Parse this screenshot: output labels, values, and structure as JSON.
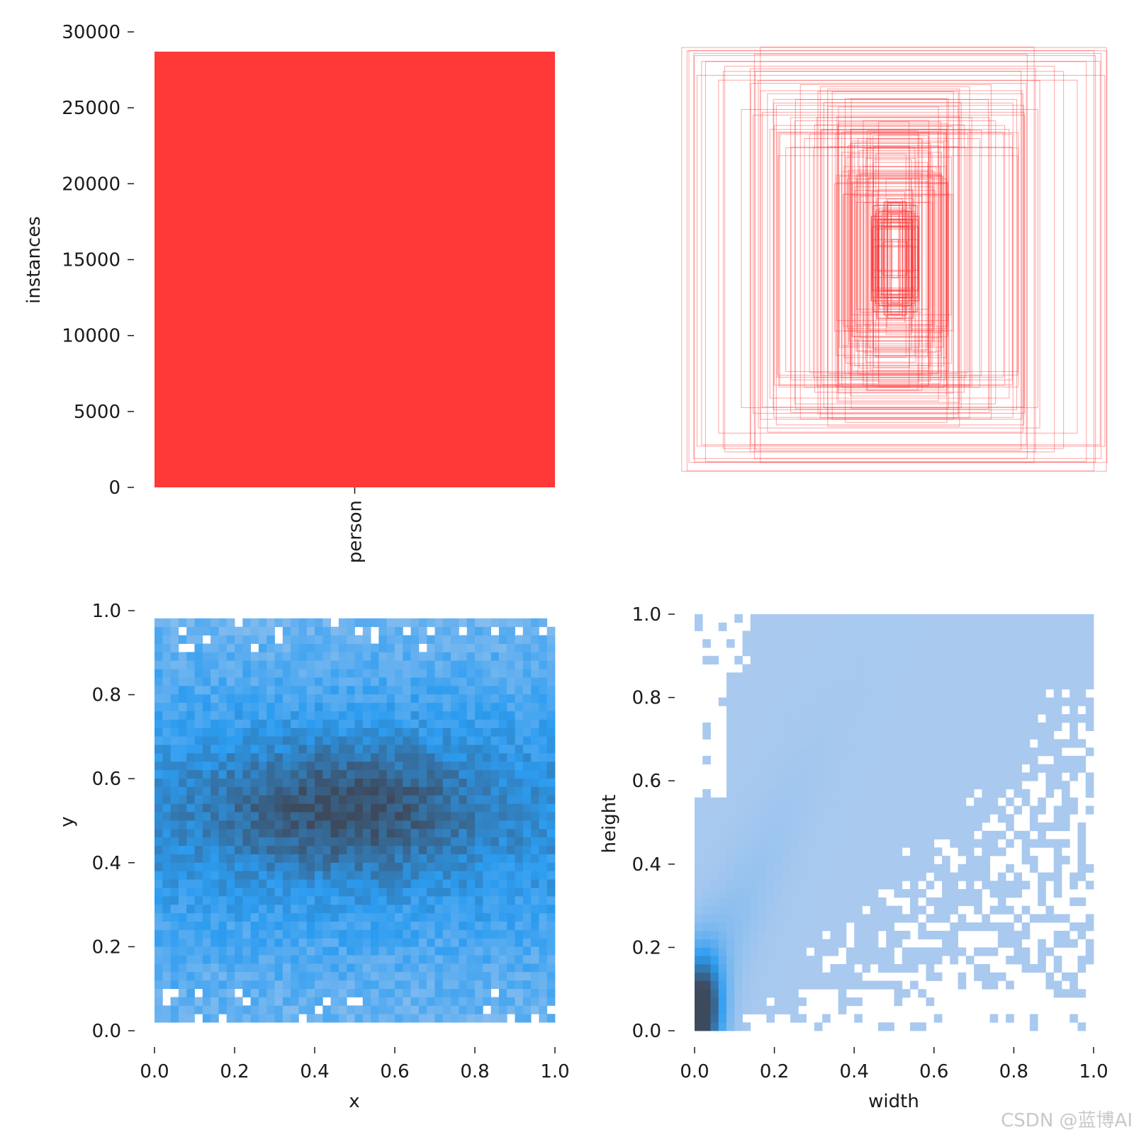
{
  "colors": {
    "bar": "#ff3838",
    "box_stroke": "#ff3838",
    "heat_light": "#aecbef",
    "heat_mid": "#2c9cf0",
    "heat_dark": "#3d4a5e",
    "axis": "#1a1a1a"
  },
  "watermark": "CSDN @蓝博AI",
  "chart_data": [
    {
      "type": "bar",
      "categories": [
        "person"
      ],
      "values": [
        28700
      ],
      "xlabel": "",
      "ylabel": "instances",
      "ylim": [
        0,
        30000
      ],
      "yticks": [
        "0",
        "5000",
        "10000",
        "15000",
        "20000",
        "25000",
        "30000"
      ],
      "ytick_values": [
        0,
        5000,
        10000,
        15000,
        20000,
        25000,
        30000
      ]
    },
    {
      "type": "boxes",
      "description_label": "",
      "xlim": [
        0,
        1000
      ],
      "ylim": [
        0,
        1000
      ],
      "box_count": 120
    },
    {
      "type": "heatmap",
      "xlabel": "x",
      "ylabel": "y",
      "xlim": [
        0,
        1
      ],
      "ylim": [
        0,
        1
      ],
      "bins": 50,
      "xticks": [
        "0.0",
        "0.2",
        "0.4",
        "0.6",
        "0.8",
        "1.0"
      ],
      "yticks": [
        "0.0",
        "0.2",
        "0.4",
        "0.6",
        "0.8",
        "1.0"
      ],
      "tick_values": [
        0,
        0.2,
        0.4,
        0.6,
        0.8,
        1.0
      ],
      "data_range": {
        "x": [
          0.0,
          1.0
        ],
        "y": [
          0.0,
          0.98
        ]
      },
      "peak": {
        "x": 0.48,
        "y": 0.53
      }
    },
    {
      "type": "heatmap",
      "xlabel": "width",
      "ylabel": "height",
      "xlim": [
        0,
        1
      ],
      "ylim": [
        0,
        1
      ],
      "bins": 50,
      "xticks": [
        "0.0",
        "0.2",
        "0.4",
        "0.6",
        "0.8",
        "1.0"
      ],
      "yticks": [
        "0.0",
        "0.2",
        "0.4",
        "0.6",
        "0.8",
        "1.0"
      ],
      "tick_values": [
        0,
        0.2,
        0.4,
        0.6,
        0.8,
        1.0
      ],
      "peak": {
        "x": 0.02,
        "y": 0.05
      }
    }
  ]
}
